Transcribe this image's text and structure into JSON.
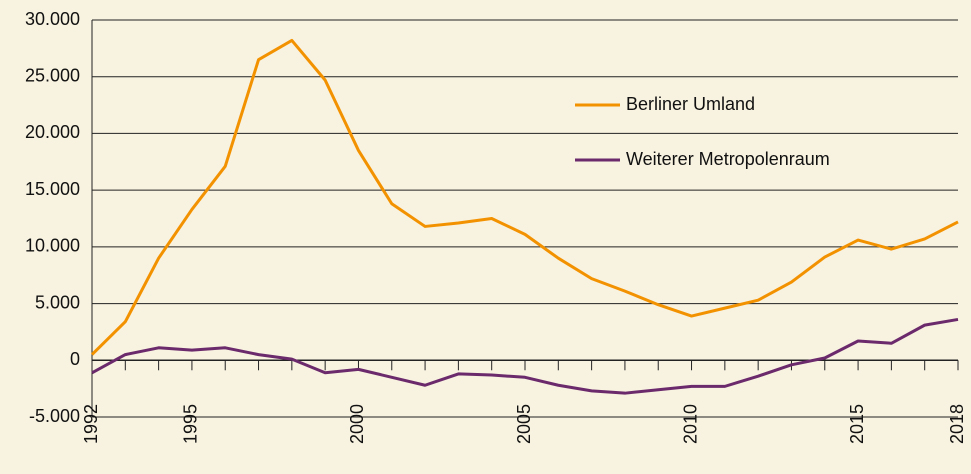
{
  "chart_data": {
    "type": "line",
    "x": [
      1992,
      1993,
      1994,
      1995,
      1996,
      1997,
      1998,
      1999,
      2000,
      2001,
      2002,
      2003,
      2004,
      2005,
      2006,
      2007,
      2008,
      2009,
      2010,
      2011,
      2012,
      2013,
      2014,
      2015,
      2016,
      2017,
      2018
    ],
    "series": [
      {
        "name": "Berliner Umland",
        "color": "#f39200",
        "values": [
          500,
          3400,
          9000,
          13300,
          17100,
          26500,
          28200,
          24700,
          18500,
          13800,
          11800,
          12100,
          12500,
          11100,
          9000,
          7200,
          6100,
          4900,
          3900,
          4600,
          5300,
          6900,
          9100,
          10600,
          9800,
          10700,
          12200
        ]
      },
      {
        "name": "Weiterer Metropolenraum",
        "color": "#6b2a6b",
        "values": [
          -1100,
          500,
          1100,
          900,
          1100,
          500,
          100,
          -1100,
          -800,
          -1500,
          -2200,
          -1200,
          -1300,
          -1500,
          -2200,
          -2700,
          -2900,
          -2600,
          -2300,
          -2300,
          -1400,
          -400,
          200,
          1700,
          1500,
          3100,
          3600
        ]
      }
    ],
    "xlim": [
      1992,
      2018
    ],
    "xticks": [
      1992,
      1995,
      2000,
      2005,
      2010,
      2015,
      2018
    ],
    "ylim": [
      -5000,
      30000
    ],
    "yticks": [
      {
        "value": -5000,
        "label": "-5.000"
      },
      0,
      {
        "value": 5000,
        "label": "5.000"
      },
      {
        "value": 10000,
        "label": "10.000"
      },
      {
        "value": 15000,
        "label": "15.000"
      },
      {
        "value": 20000,
        "label": "20.000"
      },
      {
        "value": 25000,
        "label": "25.000"
      },
      {
        "value": 30000,
        "label": "30.000"
      }
    ],
    "grid": true,
    "legend": "right"
  }
}
